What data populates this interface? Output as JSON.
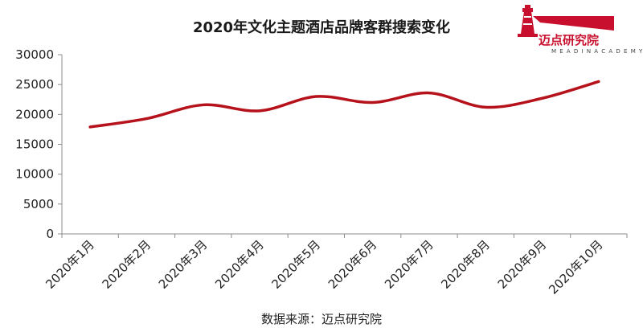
{
  "chart_data": {
    "type": "line",
    "title": "2020年文化主题酒店品牌客群搜索变化",
    "xlabel": "",
    "ylabel": "",
    "categories": [
      "2020年1月",
      "2020年2月",
      "2020年3月",
      "2020年4月",
      "2020年5月",
      "2020年6月",
      "2020年7月",
      "2020年8月",
      "2020年9月",
      "2020年10月"
    ],
    "series": [
      {
        "values": [
          17900,
          19300,
          21600,
          20600,
          23000,
          22000,
          23600,
          21200,
          22700,
          25500
        ]
      }
    ],
    "ylim": [
      0,
      30000
    ],
    "yticks": [
      0,
      5000,
      10000,
      15000,
      20000,
      25000,
      30000
    ],
    "grid": false,
    "legend": "none",
    "line_color": "#b5121b",
    "source": "数据来源：迈点研究院"
  },
  "logo": {
    "name": "迈点研究院",
    "subtitle": "M E A D I N   A C A D E M Y",
    "color": "#c8102e"
  }
}
